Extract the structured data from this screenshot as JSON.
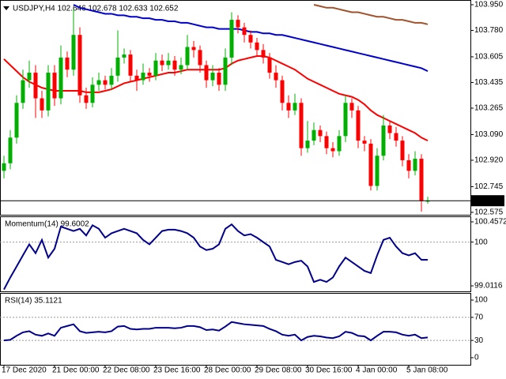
{
  "chart_data": [
    {
      "type": "candlestick",
      "title": "USDJPY,H4 102.646 102.678 102.633 102.652",
      "categories": [
        "17 Dec 2020",
        null,
        null,
        null,
        null,
        null,
        null,
        null,
        "21 Dec 00:00",
        null,
        null,
        null,
        null,
        null,
        null,
        null,
        "22 Dec 08:00",
        null,
        null,
        null,
        null,
        null,
        null,
        null,
        "23 Dec 16:00",
        null,
        null,
        null,
        null,
        null,
        null,
        null,
        "28 Dec 00:00",
        null,
        null,
        null,
        null,
        null,
        null,
        null,
        "29 Dec 08:00",
        null,
        null,
        null,
        null,
        null,
        null,
        null,
        "30 Dec 16:00",
        null,
        null,
        null,
        null,
        null,
        null,
        null,
        "4 Jan 00:00",
        null,
        null,
        null,
        null,
        null,
        null,
        null,
        "5 Jan 08:00",
        null,
        null,
        null
      ],
      "open": [
        102.85,
        102.9,
        103.07,
        103.3,
        103.45,
        103.5,
        103.33,
        103.25,
        103.5,
        103.33,
        103.6,
        103.52,
        103.75,
        103.35,
        103.3,
        103.42,
        103.45,
        103.42,
        103.48,
        103.6,
        103.62,
        103.48,
        103.45,
        103.5,
        103.48,
        103.58,
        103.55,
        103.58,
        103.52,
        103.55,
        103.67,
        103.65,
        103.55,
        103.45,
        103.5,
        103.42,
        103.6,
        103.85,
        103.8,
        103.75,
        103.7,
        103.65,
        103.6,
        103.5,
        103.45,
        103.3,
        103.25,
        103.3,
        103.0,
        103.05,
        103.12,
        103.08,
        103.0,
        102.98,
        103.08,
        103.3,
        103.25,
        103.05,
        103.03,
        102.75,
        102.95,
        103.15,
        103.1,
        103.05,
        102.92,
        102.85,
        102.93,
        102.646
      ],
      "high": [
        102.95,
        103.12,
        103.35,
        103.52,
        103.58,
        103.55,
        103.38,
        103.55,
        103.55,
        103.68,
        103.64,
        103.92,
        103.8,
        103.4,
        103.47,
        103.5,
        103.48,
        103.53,
        103.78,
        103.66,
        103.65,
        103.52,
        103.56,
        103.53,
        103.63,
        103.62,
        103.63,
        103.61,
        103.6,
        103.75,
        103.71,
        103.68,
        103.58,
        103.55,
        103.53,
        103.66,
        103.9,
        103.88,
        103.83,
        103.78,
        103.73,
        103.69,
        103.63,
        103.55,
        103.48,
        103.35,
        103.36,
        103.33,
        103.18,
        103.17,
        103.15,
        103.11,
        103.04,
        103.12,
        103.35,
        103.33,
        103.28,
        103.08,
        103.06,
        103.0,
        103.22,
        103.18,
        103.14,
        103.08,
        102.96,
        102.98,
        102.96,
        102.678
      ],
      "low": [
        102.8,
        102.86,
        103.03,
        103.26,
        103.4,
        103.2,
        103.2,
        103.21,
        103.28,
        103.29,
        103.47,
        103.48,
        103.3,
        103.26,
        103.27,
        103.38,
        103.39,
        103.39,
        103.44,
        103.56,
        103.44,
        103.38,
        103.42,
        103.44,
        103.45,
        103.51,
        103.52,
        103.48,
        103.49,
        103.52,
        103.6,
        103.5,
        103.4,
        103.41,
        103.38,
        103.38,
        103.55,
        103.76,
        103.7,
        103.66,
        103.61,
        103.56,
        103.46,
        103.4,
        103.25,
        103.2,
        103.22,
        102.95,
        102.97,
        103.02,
        103.04,
        102.96,
        102.94,
        102.95,
        103.04,
        103.2,
        103.0,
        102.98,
        102.72,
        102.72,
        102.92,
        103.06,
        103.01,
        102.88,
        102.8,
        102.82,
        102.58,
        102.633
      ],
      "close": [
        102.9,
        103.07,
        103.3,
        103.45,
        103.5,
        103.33,
        103.25,
        103.5,
        103.33,
        103.6,
        103.52,
        103.75,
        103.35,
        103.3,
        103.42,
        103.45,
        103.42,
        103.48,
        103.6,
        103.62,
        103.48,
        103.45,
        103.5,
        103.48,
        103.58,
        103.55,
        103.58,
        103.52,
        103.55,
        103.67,
        103.65,
        103.55,
        103.45,
        103.5,
        103.42,
        103.6,
        103.85,
        103.8,
        103.75,
        103.7,
        103.65,
        103.6,
        103.5,
        103.45,
        103.3,
        103.25,
        103.3,
        103.0,
        103.05,
        103.12,
        103.08,
        103.0,
        102.98,
        103.08,
        103.3,
        103.25,
        103.05,
        103.03,
        102.75,
        102.95,
        103.15,
        103.1,
        103.05,
        102.92,
        102.85,
        102.93,
        102.65,
        102.652
      ],
      "up_color": "#00b000",
      "down_color": "#ff0000",
      "overlays": [
        {
          "color": "#ff0000",
          "values": [
            103.59,
            103.55,
            103.51,
            103.47,
            103.44,
            103.42,
            103.4,
            103.39,
            103.38,
            103.38,
            103.38,
            103.38,
            103.38,
            103.37,
            103.37,
            103.37,
            103.38,
            103.39,
            103.41,
            103.43,
            103.44,
            103.45,
            103.46,
            103.47,
            103.48,
            103.49,
            103.5,
            103.5,
            103.51,
            103.52,
            103.52,
            103.52,
            103.52,
            103.52,
            103.52,
            103.53,
            103.56,
            103.58,
            103.59,
            103.6,
            103.61,
            103.61,
            103.6,
            103.58,
            103.56,
            103.54,
            103.52,
            103.49,
            103.46,
            103.44,
            103.42,
            103.4,
            103.38,
            103.36,
            103.35,
            103.34,
            103.32,
            103.29,
            103.25,
            103.22,
            103.2,
            103.18,
            103.16,
            103.14,
            103.12,
            103.1,
            103.07,
            103.05
          ]
        },
        {
          "color": "#0000cd",
          "values": [
            null,
            null,
            null,
            null,
            null,
            null,
            null,
            null,
            null,
            null,
            null,
            103.95,
            103.93,
            103.92,
            103.91,
            103.9,
            103.89,
            103.89,
            103.88,
            103.88,
            103.87,
            103.87,
            103.86,
            103.86,
            103.85,
            103.85,
            103.84,
            103.84,
            103.83,
            103.83,
            103.82,
            103.81,
            103.8,
            103.8,
            103.79,
            103.79,
            103.79,
            103.79,
            103.78,
            103.77,
            103.77,
            103.76,
            103.76,
            103.75,
            103.75,
            103.74,
            103.73,
            103.72,
            103.71,
            103.7,
            103.69,
            103.68,
            103.67,
            103.66,
            103.65,
            103.64,
            103.63,
            103.62,
            103.61,
            103.6,
            103.59,
            103.58,
            103.57,
            103.56,
            103.55,
            103.54,
            103.53,
            103.51
          ]
        },
        {
          "color": "#a0522d",
          "values": [
            null,
            null,
            null,
            null,
            null,
            null,
            null,
            null,
            null,
            null,
            null,
            null,
            null,
            null,
            null,
            null,
            null,
            null,
            null,
            null,
            null,
            null,
            null,
            null,
            null,
            null,
            null,
            null,
            null,
            null,
            null,
            null,
            null,
            null,
            null,
            null,
            null,
            null,
            null,
            null,
            null,
            null,
            null,
            null,
            null,
            null,
            null,
            null,
            null,
            103.95,
            103.94,
            103.93,
            103.93,
            103.92,
            103.91,
            103.9,
            103.9,
            103.89,
            103.88,
            103.87,
            103.87,
            103.86,
            103.85,
            103.85,
            103.84,
            103.83,
            103.83,
            103.82
          ]
        }
      ],
      "last_price": 102.652,
      "ylim": [
        102.559,
        103.976
      ],
      "yticks": [
        {
          "value": 103.95,
          "label": "103.950"
        },
        {
          "value": 103.78,
          "label": "103.780"
        },
        103.605,
        103.435,
        103.265,
        {
          "value": 103.09,
          "label": "103.090"
        },
        {
          "value": 102.92,
          "label": "102.920"
        },
        102.745,
        102.575
      ]
    },
    {
      "type": "line",
      "title": "Momentum(14) 99.6002",
      "color": "#00008b",
      "values": [
        98.93,
        99.2,
        99.45,
        99.7,
        99.95,
        99.75,
        100.05,
        99.65,
        99.85,
        100.35,
        100.3,
        100.25,
        100.3,
        100.15,
        100.38,
        100.3,
        100.1,
        100.2,
        100.25,
        100.3,
        100.25,
        100.2,
        100.05,
        99.95,
        100.1,
        100.25,
        100.28,
        100.28,
        100.25,
        100.2,
        100.1,
        99.9,
        99.82,
        99.85,
        99.95,
        100.3,
        100.4,
        100.25,
        100.15,
        100.18,
        100.1,
        100.0,
        99.9,
        99.6,
        99.55,
        99.5,
        99.55,
        99.58,
        99.45,
        99.1,
        99.15,
        99.1,
        99.2,
        99.45,
        99.65,
        99.55,
        99.45,
        99.35,
        99.3,
        99.7,
        100.05,
        100.1,
        99.9,
        99.75,
        99.7,
        99.75,
        99.6,
        99.6002
      ],
      "levels": [
        100
      ],
      "ylim": [
        98.905,
        100.564
      ],
      "yticks": [
        100.4572,
        100,
        99.0116
      ]
    },
    {
      "type": "line",
      "title": "RSI(14) 35.1121",
      "color": "#00008b",
      "values": [
        30,
        31,
        38,
        44,
        46,
        40,
        38,
        42,
        38,
        52,
        55,
        58,
        46,
        43,
        44,
        45,
        44,
        46,
        54,
        55,
        50,
        49,
        50,
        50,
        52,
        52,
        52,
        51,
        52,
        55,
        55,
        53,
        48,
        49,
        47,
        54,
        62,
        60,
        58,
        57,
        56,
        55,
        50,
        46,
        40,
        38,
        40,
        30,
        36,
        38,
        37,
        35,
        34,
        37,
        45,
        43,
        38,
        37,
        30,
        38,
        45,
        45,
        44,
        40,
        38,
        40,
        34,
        35.1121
      ],
      "levels": [
        70,
        30
      ],
      "ylim": [
        -12.3,
        111
      ],
      "yticks": [
        100,
        70,
        30,
        0
      ]
    }
  ]
}
